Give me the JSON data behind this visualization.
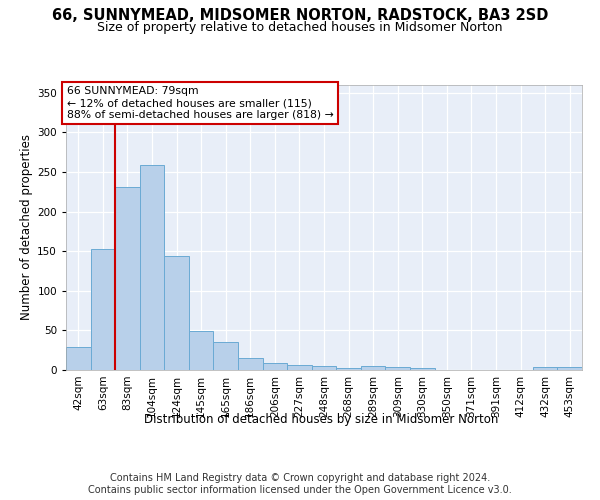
{
  "title": "66, SUNNYMEAD, MIDSOMER NORTON, RADSTOCK, BA3 2SD",
  "subtitle": "Size of property relative to detached houses in Midsomer Norton",
  "xlabel": "Distribution of detached houses by size in Midsomer Norton",
  "ylabel": "Number of detached properties",
  "footer_line1": "Contains HM Land Registry data © Crown copyright and database right 2024.",
  "footer_line2": "Contains public sector information licensed under the Open Government Licence v3.0.",
  "categories": [
    "42sqm",
    "63sqm",
    "83sqm",
    "104sqm",
    "124sqm",
    "145sqm",
    "165sqm",
    "186sqm",
    "206sqm",
    "227sqm",
    "248sqm",
    "268sqm",
    "289sqm",
    "309sqm",
    "330sqm",
    "350sqm",
    "371sqm",
    "391sqm",
    "412sqm",
    "432sqm",
    "453sqm"
  ],
  "values": [
    29,
    153,
    231,
    259,
    144,
    49,
    35,
    15,
    9,
    6,
    5,
    3,
    5,
    4,
    2,
    0,
    0,
    0,
    0,
    4,
    4
  ],
  "bar_color": "#b8d0ea",
  "bar_edge_color": "#6aaad4",
  "vline_index": 2,
  "vline_color": "#cc0000",
  "annotation_line1": "66 SUNNYMEAD: 79sqm",
  "annotation_line2": "← 12% of detached houses are smaller (115)",
  "annotation_line3": "88% of semi-detached houses are larger (818) →",
  "ylim": [
    0,
    360
  ],
  "yticks": [
    0,
    50,
    100,
    150,
    200,
    250,
    300,
    350
  ],
  "background_color": "#e8eef8",
  "grid_color": "#ffffff",
  "title_fontsize": 10.5,
  "subtitle_fontsize": 9,
  "axis_label_fontsize": 8.5,
  "tick_fontsize": 7.5,
  "footer_fontsize": 7
}
